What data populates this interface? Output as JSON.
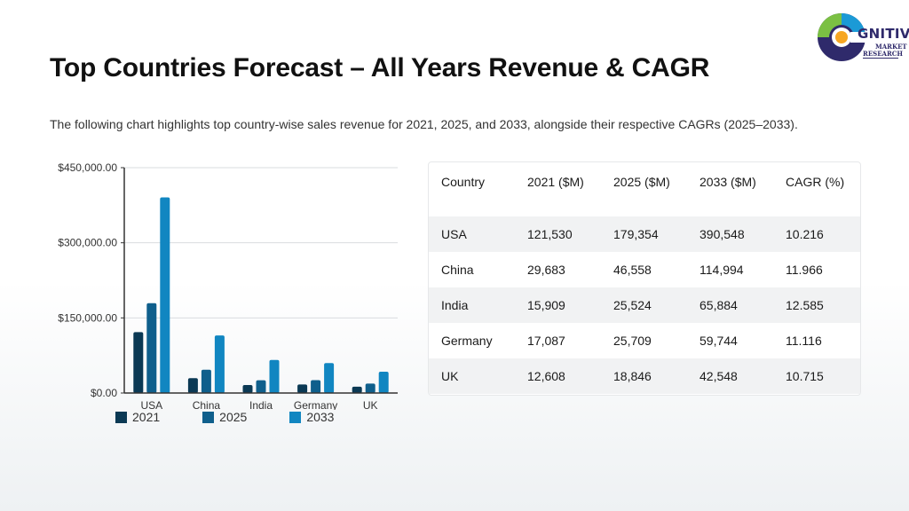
{
  "page": {
    "title": "Top Countries Forecast – All Years Revenue & CAGR",
    "subtitle": "The following chart highlights top country-wise sales revenue for 2021, 2025, and 2033, alongside their respective CAGRs (2025–2033)."
  },
  "logo": {
    "word": "GNITIVE",
    "line1": "MARKET",
    "line2": "RESEARCH",
    "colors": [
      "#1b9ad6",
      "#2f2a6b",
      "#7bc043",
      "#f6a623"
    ]
  },
  "chart_data": {
    "type": "bar",
    "title": "",
    "xlabel": "",
    "ylabel": "",
    "categories": [
      "USA",
      "China",
      "India",
      "Germany",
      "UK"
    ],
    "series": [
      {
        "name": "2021",
        "color": "#0b3954",
        "values": [
          121530,
          29683,
          15909,
          17087,
          12608
        ]
      },
      {
        "name": "2025",
        "color": "#0f5f8c",
        "values": [
          179354,
          46558,
          25524,
          25709,
          18846
        ]
      },
      {
        "name": "2033",
        "color": "#1186c1",
        "values": [
          390548,
          114994,
          65884,
          59744,
          42548
        ]
      }
    ],
    "ylim": [
      0,
      450000
    ],
    "yticks": [
      0,
      150000,
      300000,
      450000
    ],
    "ytick_labels": [
      "$0.00",
      "$150,000.00",
      "$300,000.00",
      "$450,000.00"
    ],
    "grid": true,
    "legend": "bottom"
  },
  "table": {
    "headers": [
      "Country",
      "2021 ($M)",
      "2025 ($M)",
      "2033 ($M)",
      "CAGR (%)"
    ],
    "rows": [
      [
        "USA",
        "121,530",
        "179,354",
        "390,548",
        "10.216"
      ],
      [
        "China",
        "29,683",
        "46,558",
        "114,994",
        "11.966"
      ],
      [
        "India",
        "15,909",
        "25,524",
        "65,884",
        "12.585"
      ],
      [
        "Germany",
        "17,087",
        "25,709",
        "59,744",
        "11.116"
      ],
      [
        "UK",
        "12,608",
        "18,846",
        "42,548",
        "10.715"
      ]
    ]
  }
}
